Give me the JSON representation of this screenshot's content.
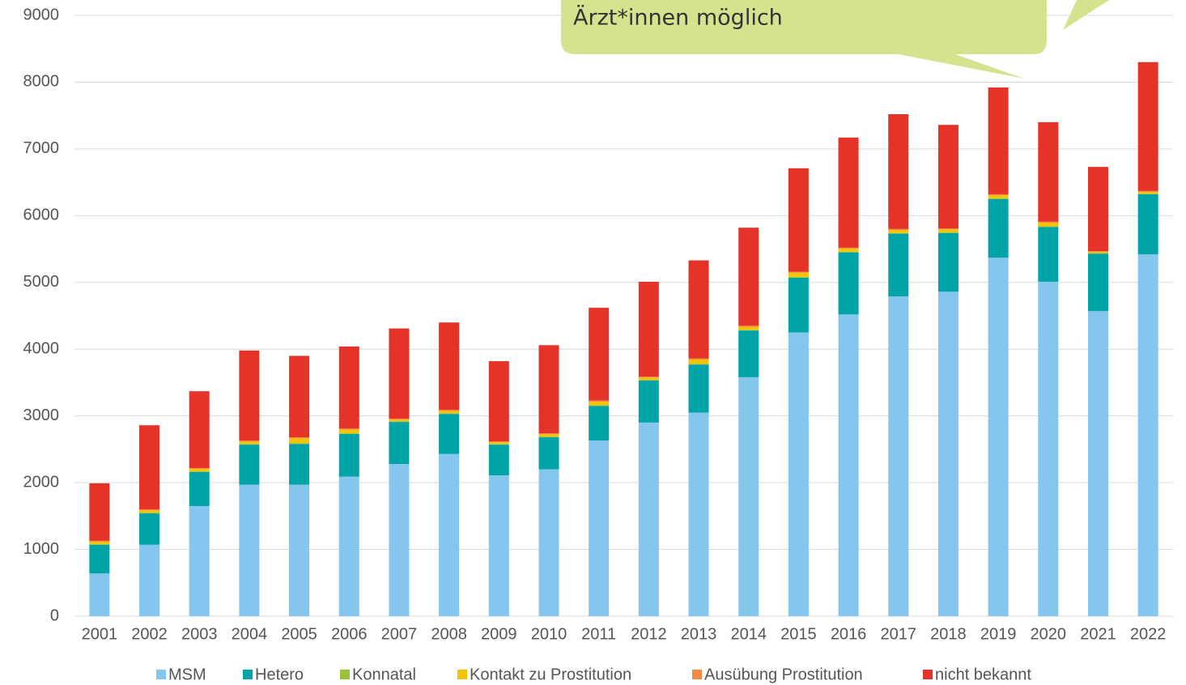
{
  "chart_data": {
    "type": "stacked-bar",
    "callout": "Ärzt*innen möglich",
    "categories": [
      "2001",
      "2002",
      "2003",
      "2004",
      "2005",
      "2006",
      "2007",
      "2008",
      "2009",
      "2010",
      "2011",
      "2012",
      "2013",
      "2014",
      "2015",
      "2016",
      "2017",
      "2018",
      "2019",
      "2020",
      "2021",
      "2022"
    ],
    "series": [
      {
        "name": "MSM",
        "color": "#85c6ee",
        "values": [
          640,
          1070,
          1650,
          1970,
          1970,
          2090,
          2280,
          2430,
          2110,
          2200,
          2630,
          2900,
          3050,
          3580,
          4250,
          4520,
          4790,
          4860,
          5370,
          5010,
          4570,
          5420
        ]
      },
      {
        "name": "Hetero",
        "color": "#00a3a6",
        "values": [
          430,
          470,
          510,
          600,
          610,
          640,
          630,
          600,
          460,
          480,
          520,
          630,
          720,
          700,
          820,
          930,
          940,
          880,
          880,
          820,
          860,
          900
        ]
      },
      {
        "name": "Konnatal",
        "color": "#9bc13c",
        "values": [
          10,
          10,
          10,
          10,
          10,
          10,
          10,
          10,
          10,
          10,
          10,
          10,
          10,
          10,
          10,
          10,
          10,
          10,
          10,
          10,
          10,
          10
        ]
      },
      {
        "name": "Kontakt zu Prostitution",
        "color": "#f5c400",
        "values": [
          35,
          35,
          35,
          35,
          75,
          55,
          25,
          35,
          25,
          35,
          55,
          35,
          65,
          45,
          65,
          45,
          45,
          45,
          45,
          55,
          15,
          25
        ]
      },
      {
        "name": "Ausübung Prostitution",
        "color": "#f08a45",
        "values": [
          15,
          15,
          15,
          15,
          15,
          15,
          15,
          15,
          15,
          15,
          15,
          15,
          15,
          15,
          15,
          15,
          15,
          15,
          15,
          15,
          15,
          15
        ]
      },
      {
        "name": "nicht bekannt",
        "color": "#e5332a",
        "values": [
          860,
          1260,
          1150,
          1350,
          1220,
          1230,
          1350,
          1310,
          1200,
          1320,
          1390,
          1420,
          1470,
          1470,
          1550,
          1650,
          1720,
          1550,
          1600,
          1490,
          1260,
          1930
        ]
      }
    ],
    "ylim": [
      0,
      9000
    ],
    "yticks": [
      0,
      1000,
      2000,
      3000,
      4000,
      5000,
      6000,
      7000,
      8000,
      9000
    ],
    "grid": true
  }
}
